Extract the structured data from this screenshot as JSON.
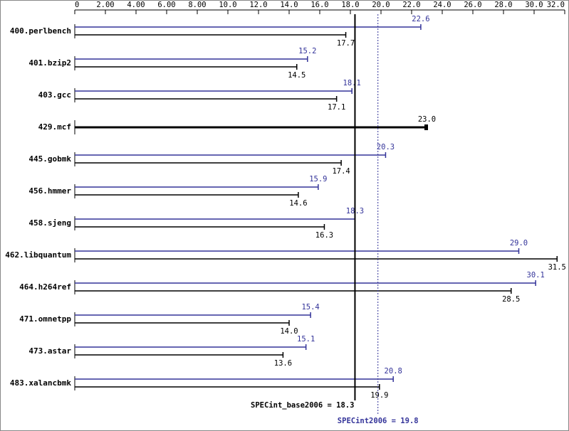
{
  "chart_data": {
    "type": "hbar-pair",
    "categories": [
      "400.perlbench",
      "401.bzip2",
      "403.gcc",
      "429.mcf",
      "445.gobmk",
      "456.hmmer",
      "458.sjeng",
      "462.libquantum",
      "464.h264ref",
      "471.omnetpp",
      "473.astar",
      "483.xalancbmk"
    ],
    "series": [
      {
        "color": "#333399",
        "values": [
          22.6,
          15.2,
          18.1,
          null,
          20.3,
          15.9,
          18.3,
          29.0,
          30.1,
          15.4,
          15.1,
          20.8
        ],
        "value_labels": [
          "22.6",
          "15.2",
          "18.1",
          null,
          "20.3",
          "15.9",
          "18.3",
          "29.0",
          "30.1",
          "15.4",
          "15.1",
          "20.8"
        ]
      },
      {
        "color": "#000000",
        "values": [
          17.7,
          14.5,
          17.1,
          23.0,
          17.4,
          14.6,
          16.3,
          31.5,
          28.5,
          14.0,
          13.6,
          19.9
        ],
        "value_labels": [
          "17.7",
          "14.5",
          "17.1",
          "23.0",
          "17.4",
          "14.6",
          "16.3",
          "31.5",
          "28.5",
          "14.0",
          "13.6",
          "19.9"
        ]
      }
    ],
    "xlim": [
      0,
      32
    ],
    "xticks": [
      0,
      {
        "value": 2,
        "label": "2.00"
      },
      {
        "value": 4,
        "label": "4.00"
      },
      {
        "value": 6,
        "label": "6.00"
      },
      {
        "value": 8,
        "label": "8.00"
      },
      {
        "value": 10,
        "label": "10.0"
      },
      {
        "value": 12,
        "label": "12.0"
      },
      {
        "value": 14,
        "label": "14.0"
      },
      {
        "value": 16,
        "label": "16.0"
      },
      {
        "value": 18,
        "label": "18.0"
      },
      {
        "value": 20,
        "label": "20.0"
      },
      {
        "value": 22,
        "label": "22.0"
      },
      {
        "value": 24,
        "label": "24.0"
      },
      {
        "value": 26,
        "label": "26.0"
      },
      {
        "value": 28,
        "label": "28.0"
      },
      {
        "value": 30,
        "label": "30.0"
      },
      {
        "value": 32,
        "label": "32.0"
      }
    ],
    "reference_lines": [
      {
        "label": "SPECint_base2006 = 18.3",
        "value": 18.3,
        "color": "#000000",
        "style": "solid"
      },
      {
        "label": "SPECint2006 = 19.8",
        "value": 19.8,
        "color": "#333399",
        "style": "dotted"
      }
    ]
  }
}
